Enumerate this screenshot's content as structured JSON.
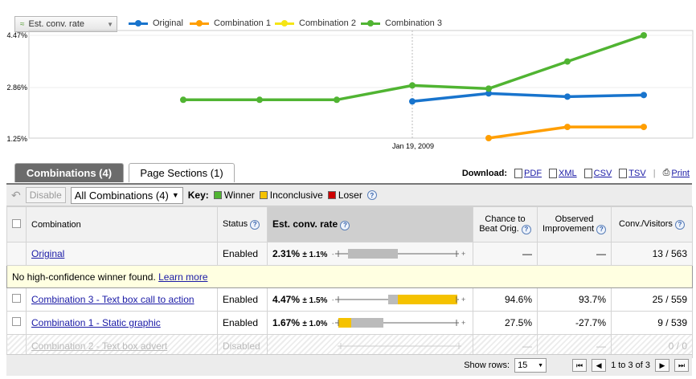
{
  "metric_select": {
    "label": "Est. conv. rate"
  },
  "legend": [
    {
      "label": "Original",
      "color": "#1874cd"
    },
    {
      "label": "Combination 1",
      "color": "#ff9e00"
    },
    {
      "label": "Combination 2",
      "color": "#f5e516"
    },
    {
      "label": "Combination 3",
      "color": "#50b432"
    }
  ],
  "chart_data": {
    "type": "line",
    "y_ticks": [
      "4.47%",
      "2.86%",
      "1.25%"
    ],
    "ylim": [
      1.25,
      4.47
    ],
    "x_tick_label": "Jan 19, 2009",
    "x_points": 7,
    "series": [
      {
        "name": "Original",
        "color": "#1874cd",
        "values": [
          null,
          null,
          null,
          2.4,
          2.65,
          2.55,
          2.6
        ]
      },
      {
        "name": "Combination 1",
        "color": "#ff9e00",
        "values": [
          null,
          null,
          null,
          null,
          1.25,
          1.6,
          1.6
        ]
      },
      {
        "name": "Combination 3",
        "color": "#50b432",
        "values": [
          2.45,
          2.45,
          2.45,
          2.9,
          2.8,
          3.65,
          4.47
        ]
      }
    ]
  },
  "tabs": {
    "combinations": "Combinations (4)",
    "sections": "Page Sections (1)"
  },
  "download": {
    "label": "Download:",
    "pdf": "PDF",
    "xml": "XML",
    "csv": "CSV",
    "tsv": "TSV",
    "print": "Print"
  },
  "toolbar": {
    "disable": "Disable",
    "combo_select": "All Combinations (4)",
    "key": "Key:",
    "winner": "Winner",
    "inconclusive": "Inconclusive",
    "loser": "Loser"
  },
  "key_colors": {
    "winner": "#50b432",
    "inconclusive": "#f5c200",
    "loser": "#cc0000"
  },
  "table": {
    "headers": {
      "combination": "Combination",
      "status": "Status",
      "rate": "Est. conv. rate",
      "chance1": "Chance to",
      "chance2": "Beat Orig.",
      "obs1": "Observed",
      "obs2": "Improvement",
      "conv": "Conv./Visitors"
    },
    "original": {
      "name": "Original",
      "status": "Enabled",
      "rate": "2.31%",
      "pm": "± 1.1%",
      "chance": "—",
      "improvement": "—",
      "conv": "13 / 563"
    },
    "notice": {
      "text": "No high-confidence winner found.",
      "link": "Learn more"
    },
    "rows": [
      {
        "name": "Combination 3 - Text box call to action",
        "status": "Enabled",
        "rate": "4.47%",
        "pm": "± 1.5%",
        "chance": "94.6%",
        "improvement": "93.7%",
        "conv": "25 / 559"
      },
      {
        "name": "Combination 1 - Static graphic",
        "status": "Enabled",
        "rate": "1.67%",
        "pm": "± 1.0%",
        "chance": "27.5%",
        "improvement": "-27.7%",
        "conv": "9 / 539"
      },
      {
        "name": "Combination 2 - Text box advert",
        "status": "Disabled",
        "rate": "",
        "pm": "",
        "chance": "—",
        "improvement": "—",
        "conv": "0 / 0"
      }
    ]
  },
  "footer": {
    "show_rows": "Show rows:",
    "rows_value": "15",
    "range": "1 to 3 of 3"
  }
}
